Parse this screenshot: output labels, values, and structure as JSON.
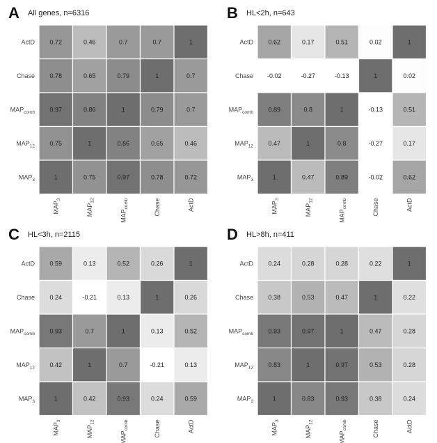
{
  "chart_data": [
    {
      "type": "heatmap",
      "letter": "A",
      "title": "All genes, n=6316",
      "rows": [
        "ActD",
        "Chase",
        "MAP_comb",
        "MAP_12",
        "MAP_3"
      ],
      "columns": [
        "MAP_3",
        "MAP_12",
        "MAP_comb",
        "Chase",
        "ActD"
      ],
      "values": [
        [
          0.72,
          0.46,
          0.7,
          0.7,
          1
        ],
        [
          0.78,
          0.65,
          0.79,
          1,
          0.7
        ],
        [
          0.97,
          0.86,
          1,
          0.79,
          0.7
        ],
        [
          0.75,
          1,
          0.86,
          0.65,
          0.46
        ],
        [
          1,
          0.75,
          0.97,
          0.78,
          0.72
        ]
      ]
    },
    {
      "type": "heatmap",
      "letter": "B",
      "title": "HL<2h, n=643",
      "rows": [
        "ActD",
        "Chase",
        "MAP_comb",
        "MAP_12",
        "MAP_3"
      ],
      "columns": [
        "MAP_3",
        "MAP_12",
        "MAP_comb",
        "Chase",
        "ActD"
      ],
      "values": [
        [
          0.62,
          0.17,
          0.51,
          0.02,
          1
        ],
        [
          -0.02,
          -0.27,
          -0.13,
          1,
          0.02
        ],
        [
          0.89,
          0.8,
          1,
          -0.13,
          0.51
        ],
        [
          0.47,
          1,
          0.8,
          -0.27,
          0.17
        ],
        [
          1,
          0.47,
          0.89,
          -0.02,
          0.62
        ]
      ]
    },
    {
      "type": "heatmap",
      "letter": "C",
      "title": "HL<3h, n=2115",
      "rows": [
        "ActD",
        "Chase",
        "MAP_comb",
        "MAP_12",
        "MAP_3"
      ],
      "columns": [
        "MAP_3",
        "MAP_12",
        "MAP_comb",
        "Chase",
        "ActD"
      ],
      "values": [
        [
          0.59,
          0.13,
          0.52,
          0.26,
          1
        ],
        [
          0.24,
          -0.21,
          0.13,
          1,
          0.26
        ],
        [
          0.93,
          0.7,
          1,
          0.13,
          0.52
        ],
        [
          0.42,
          1,
          0.7,
          -0.21,
          0.13
        ],
        [
          1,
          0.42,
          0.93,
          0.24,
          0.59
        ]
      ]
    },
    {
      "type": "heatmap",
      "letter": "D",
      "title": "HL>8h, n=411",
      "rows": [
        "ActD",
        "Chase",
        "MAP_comb",
        "MAP_12",
        "MAP_3"
      ],
      "columns": [
        "MAP_3",
        "MAP_12",
        "MAP_comb",
        "Chase",
        "ActD"
      ],
      "values": [
        [
          0.24,
          0.28,
          0.28,
          0.22,
          1
        ],
        [
          0.38,
          0.53,
          0.47,
          1,
          0.22
        ],
        [
          0.93,
          0.97,
          1,
          0.47,
          0.28
        ],
        [
          0.83,
          1,
          0.97,
          0.53,
          0.28
        ],
        [
          1,
          0.83,
          0.93,
          0.38,
          0.24
        ]
      ]
    }
  ],
  "colors": {
    "high": "#6e6e6e",
    "low": "#ffffff",
    "grid": "#ffffff"
  }
}
